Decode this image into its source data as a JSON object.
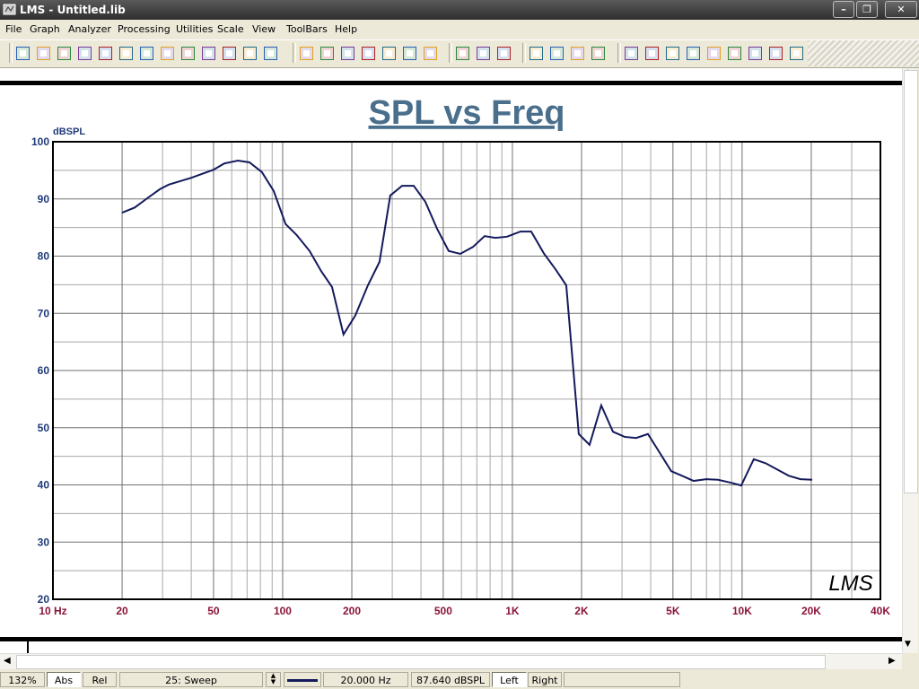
{
  "window": {
    "title": "LMS - Untitled.lib"
  },
  "menu": [
    "File",
    "Graph",
    "Analyzer",
    "Processing",
    "Utilities",
    "Scale",
    "View",
    "ToolBars",
    "Help"
  ],
  "chart_data": {
    "type": "line",
    "title": "SPL vs Freq",
    "ylabel": "dBSPL",
    "watermark": "LMS",
    "xscale": "log",
    "x": [
      20,
      22.7,
      25.5,
      29.2,
      31.9,
      40,
      50,
      55.7,
      63.8,
      71.7,
      81.2,
      91.4,
      103,
      115,
      131,
      147,
      164,
      184,
      207,
      235,
      264,
      294,
      331,
      372,
      418,
      470,
      528,
      593,
      673,
      757,
      843,
      948,
      1084,
      1208,
      1370,
      1541,
      1716,
      1945,
      2167,
      2437,
      2740,
      3080,
      3459,
      3890,
      4335,
      4914,
      5472,
      6150,
      6979,
      7849,
      8900,
      9911,
      11240,
      12640,
      14200,
      15960,
      17950,
      20200
    ],
    "values": [
      87.6,
      88.5,
      90.0,
      91.7,
      92.5,
      93.7,
      95.1,
      96.2,
      96.7,
      96.4,
      94.7,
      91.4,
      85.6,
      83.7,
      80.9,
      77.4,
      74.6,
      66.3,
      69.6,
      74.9,
      79.0,
      90.6,
      92.3,
      92.3,
      89.5,
      84.8,
      80.9,
      80.4,
      81.6,
      83.5,
      83.2,
      83.4,
      84.3,
      84.3,
      80.5,
      77.7,
      74.9,
      48.9,
      47.0,
      53.9,
      49.3,
      48.4,
      48.2,
      48.9,
      45.9,
      42.4,
      41.6,
      40.7,
      41.0,
      40.9,
      40.4,
      39.9,
      44.5,
      43.8,
      42.7,
      41.6,
      41.0,
      40.9
    ],
    "color": "#141a5c",
    "xlim": [
      10,
      40000
    ],
    "ylim": [
      20,
      100
    ],
    "xticks": [
      {
        "value": 10,
        "label": "10 Hz"
      },
      20,
      50,
      100,
      200,
      500,
      {
        "value": 1000,
        "label": "1K"
      },
      {
        "value": 2000,
        "label": "2K"
      },
      {
        "value": 5000,
        "label": "5K"
      },
      {
        "value": 10000,
        "label": "10K"
      },
      {
        "value": 20000,
        "label": "20K"
      },
      {
        "value": 40000,
        "label": "40K"
      }
    ],
    "yticks": [
      20,
      30,
      40,
      50,
      60,
      70,
      80,
      90,
      100
    ],
    "grid": true,
    "minor_grid": true
  },
  "status_bar": {
    "zoom": "132%",
    "abs": "Abs",
    "rel": "Rel",
    "curve": "25: Sweep",
    "frequency": "20.000 Hz",
    "level": "87.640 dBSPL",
    "left": "Left",
    "right": "Right"
  }
}
